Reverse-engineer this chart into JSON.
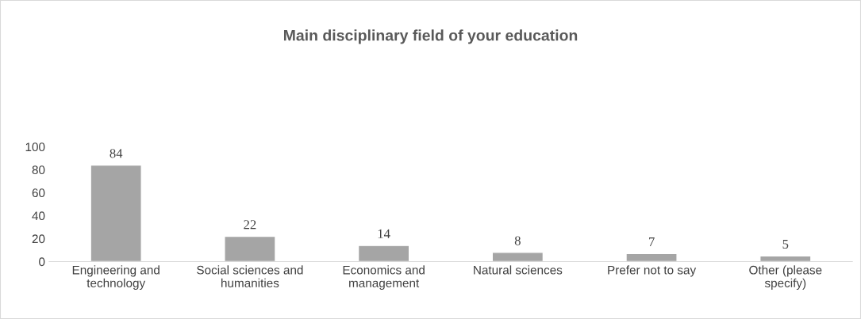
{
  "chart_data": {
    "type": "bar",
    "title": "Main disciplinary field of your education",
    "categories": [
      "Engineering and\ntechnology",
      "Social sciences and\nhumanities",
      "Economics and\nmanagement",
      "Natural sciences",
      "Prefer not to say",
      "Other (please\nspecify)"
    ],
    "values": [
      84,
      22,
      14,
      8,
      7,
      5
    ],
    "color": "#a5a5a5",
    "ylim": [
      0,
      100
    ],
    "yticks": [
      0,
      20,
      40,
      60,
      80,
      100
    ],
    "grid": false,
    "data_labels": true
  }
}
